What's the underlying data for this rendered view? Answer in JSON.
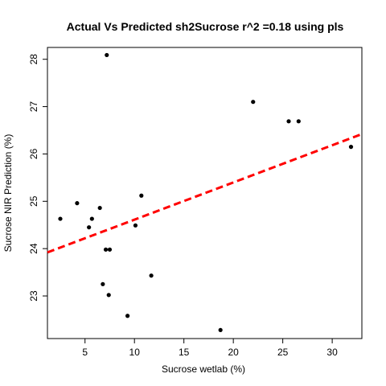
{
  "chart_data": {
    "type": "scatter",
    "title": "Actual Vs Predicted sh2Sucrose r^2 =0.18 using pls",
    "xlabel": "Sucrose wetlab (%)",
    "ylabel": "Sucrose NIR Prediction (%)",
    "xlim": [
      1.2,
      33.0
    ],
    "ylim": [
      22.1,
      28.25
    ],
    "x_ticks": [
      5,
      10,
      15,
      20,
      25,
      30
    ],
    "x_tick_labels": [
      "5",
      "10",
      "15",
      "20",
      "25",
      "30"
    ],
    "y_ticks": [
      23,
      24,
      25,
      26,
      27,
      28
    ],
    "y_tick_labels": [
      "23",
      "24",
      "25",
      "26",
      "27",
      "28"
    ],
    "grid": false,
    "points": [
      {
        "x": 2.5,
        "y": 24.63
      },
      {
        "x": 4.2,
        "y": 24.96
      },
      {
        "x": 5.4,
        "y": 24.45
      },
      {
        "x": 5.7,
        "y": 24.63
      },
      {
        "x": 6.5,
        "y": 24.86
      },
      {
        "x": 6.8,
        "y": 23.25
      },
      {
        "x": 7.1,
        "y": 23.98
      },
      {
        "x": 7.2,
        "y": 28.09
      },
      {
        "x": 7.5,
        "y": 23.98
      },
      {
        "x": 7.4,
        "y": 23.02
      },
      {
        "x": 9.3,
        "y": 22.58
      },
      {
        "x": 10.1,
        "y": 24.49
      },
      {
        "x": 10.7,
        "y": 25.12
      },
      {
        "x": 11.7,
        "y": 23.43
      },
      {
        "x": 18.7,
        "y": 22.28
      },
      {
        "x": 22.0,
        "y": 27.1
      },
      {
        "x": 25.6,
        "y": 26.69
      },
      {
        "x": 26.6,
        "y": 26.69
      },
      {
        "x": 31.9,
        "y": 26.15
      }
    ],
    "fit_line": {
      "style": "dashed",
      "color": "#ff0000",
      "x": [
        1.2,
        33.0
      ],
      "y": [
        23.92,
        26.42
      ]
    },
    "point_color": "#000000"
  }
}
